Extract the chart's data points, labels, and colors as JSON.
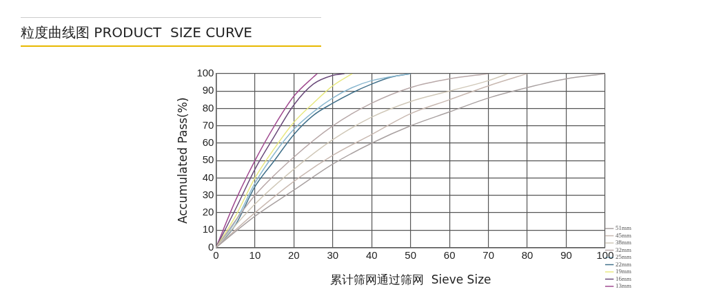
{
  "chart_data": {
    "type": "line",
    "title": "粒度曲线图 PRODUCT  SIZE CURVE",
    "xlabel": "累计筛网通过筛网  Sieve Size",
    "ylabel": "Accumulated Pass(%)",
    "xlim": [
      0,
      100
    ],
    "xticks": [
      0,
      10,
      20,
      30,
      40,
      50,
      60,
      70,
      80,
      90,
      100
    ],
    "ylim": [
      0,
      100
    ],
    "yticks": [
      0,
      10,
      20,
      30,
      40,
      50,
      60,
      70,
      80,
      90,
      100
    ],
    "grid": true,
    "legend": "bottom right",
    "marker": "none",
    "line_style": "solid",
    "series": [
      {
        "name": "51mm",
        "color": "#a8a0a0",
        "x": [
          0,
          10,
          20,
          30,
          40,
          50,
          60,
          70,
          80,
          90,
          100
        ],
        "values": [
          0,
          18,
          33,
          48,
          60,
          70,
          78,
          86,
          92,
          97,
          100
        ]
      },
      {
        "name": "45mm",
        "color": "#c8b8b0",
        "x": [
          0,
          10,
          20,
          30,
          40,
          50,
          60,
          70,
          80
        ],
        "values": [
          0,
          20,
          38,
          53,
          65,
          77,
          85,
          93,
          100
        ]
      },
      {
        "name": "38mm",
        "color": "#d0c8b8",
        "x": [
          0,
          10,
          20,
          30,
          40,
          50,
          60,
          70,
          75
        ],
        "values": [
          0,
          25,
          45,
          62,
          75,
          84,
          90,
          96,
          100
        ]
      },
      {
        "name": "32mm",
        "color": "#b8a8a8",
        "x": [
          0,
          10,
          20,
          30,
          40,
          50,
          60,
          70
        ],
        "values": [
          0,
          30,
          52,
          70,
          83,
          92,
          97,
          100
        ]
      },
      {
        "name": "25mm",
        "color": "#8ab8d0",
        "x": [
          0,
          5,
          10,
          15,
          20,
          25,
          30,
          35,
          40,
          50
        ],
        "values": [
          0,
          15,
          37,
          54,
          68,
          78,
          86,
          92,
          96,
          100
        ]
      },
      {
        "name": "22mm",
        "color": "#40708a",
        "x": [
          0,
          5,
          10,
          15,
          20,
          25,
          30,
          35,
          40,
          45,
          50
        ],
        "values": [
          0,
          13,
          35,
          50,
          65,
          76,
          83,
          89,
          94,
          98,
          100
        ]
      },
      {
        "name": "19mm",
        "color": "#e8e880",
        "x": [
          0,
          5,
          10,
          15,
          20,
          25,
          30,
          35
        ],
        "values": [
          0,
          18,
          40,
          57,
          72,
          83,
          93,
          100
        ]
      },
      {
        "name": "16mm",
        "color": "#6a4a7a",
        "x": [
          0,
          5,
          10,
          15,
          20,
          25,
          30,
          33
        ],
        "values": [
          0,
          22,
          45,
          64,
          82,
          94,
          99,
          100
        ]
      },
      {
        "name": "13mm",
        "color": "#a04a90",
        "x": [
          0,
          5,
          10,
          15,
          20,
          25,
          26
        ],
        "values": [
          0,
          27,
          50,
          70,
          87,
          98,
          100
        ]
      }
    ]
  }
}
